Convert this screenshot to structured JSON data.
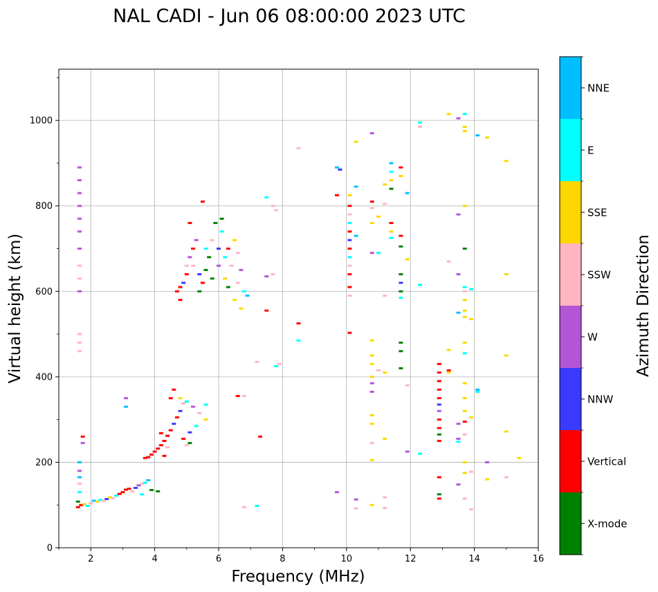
{
  "chart_data": {
    "type": "scatter",
    "title": "NAL CADI - Jun 06 08:00:00 2023 UTC",
    "xlabel": "Frequency (MHz)",
    "ylabel": "Virtual height (km)",
    "xlim": [
      1,
      16
    ],
    "ylim": [
      0,
      1120
    ],
    "xticks": [
      2,
      4,
      6,
      8,
      10,
      12,
      14,
      16
    ],
    "yticks": [
      0,
      200,
      400,
      600,
      800,
      1000
    ],
    "grid": true,
    "colorbar": {
      "label": "Azimuth Direction",
      "categories": [
        {
          "name": "X-mode",
          "color": "#008000"
        },
        {
          "name": "Vertical",
          "color": "#ff0000"
        },
        {
          "name": "NNW",
          "color": "#3a3aff"
        },
        {
          "name": "W",
          "color": "#b455d6"
        },
        {
          "name": "SSW",
          "color": "#ffb6c1"
        },
        {
          "name": "SSE",
          "color": "#ffd700"
        },
        {
          "name": "E",
          "color": "#00ffff"
        },
        {
          "name": "NNE",
          "color": "#00bfff"
        }
      ]
    },
    "points": [
      [
        1.6,
        95,
        "Vertical"
      ],
      [
        1.6,
        108,
        "X-mode"
      ],
      [
        1.7,
        100,
        "Vertical"
      ],
      [
        1.8,
        102,
        "SSE"
      ],
      [
        1.9,
        98,
        "E"
      ],
      [
        2.0,
        104,
        "SSW"
      ],
      [
        2.1,
        110,
        "NNE"
      ],
      [
        2.2,
        108,
        "SSE"
      ],
      [
        2.3,
        112,
        "E"
      ],
      [
        2.4,
        110,
        "SSW"
      ],
      [
        2.5,
        114,
        "NNW"
      ],
      [
        2.6,
        118,
        "SSE"
      ],
      [
        2.7,
        116,
        "SSW"
      ],
      [
        2.8,
        122,
        "E"
      ],
      [
        2.9,
        126,
        "Vertical"
      ],
      [
        3.0,
        130,
        "Vertical"
      ],
      [
        3.1,
        136,
        "Vertical"
      ],
      [
        3.2,
        138,
        "Vertical"
      ],
      [
        3.3,
        132,
        "SSW"
      ],
      [
        3.4,
        140,
        "NNW"
      ],
      [
        3.5,
        146,
        "W"
      ],
      [
        3.6,
        150,
        "SSW"
      ],
      [
        3.7,
        152,
        "E"
      ],
      [
        3.8,
        158,
        "NNE"
      ],
      [
        3.9,
        135,
        "X-mode"
      ],
      [
        3.6,
        125,
        "E"
      ],
      [
        4.1,
        132,
        "X-mode"
      ],
      [
        1.65,
        200,
        "NNE"
      ],
      [
        1.65,
        180,
        "W"
      ],
      [
        1.65,
        165,
        "NNE"
      ],
      [
        1.65,
        150,
        "SSW"
      ],
      [
        1.65,
        130,
        "E"
      ],
      [
        1.75,
        260,
        "Vertical"
      ],
      [
        1.75,
        245,
        "W"
      ],
      [
        3.1,
        330,
        "NNE"
      ],
      [
        3.1,
        350,
        "W"
      ],
      [
        3.7,
        210,
        "Vertical"
      ],
      [
        3.8,
        212,
        "Vertical"
      ],
      [
        3.9,
        218,
        "Vertical"
      ],
      [
        4.0,
        225,
        "Vertical"
      ],
      [
        4.1,
        232,
        "Vertical"
      ],
      [
        4.2,
        240,
        "Vertical"
      ],
      [
        4.3,
        250,
        "Vertical"
      ],
      [
        4.4,
        262,
        "Vertical"
      ],
      [
        4.5,
        275,
        "Vertical"
      ],
      [
        4.6,
        290,
        "NNW"
      ],
      [
        4.7,
        305,
        "Vertical"
      ],
      [
        4.8,
        320,
        "NNW"
      ],
      [
        4.9,
        338,
        "SSW"
      ],
      [
        5.0,
        342,
        "E"
      ],
      [
        5.2,
        330,
        "W"
      ],
      [
        5.4,
        315,
        "SSW"
      ],
      [
        5.6,
        335,
        "E"
      ],
      [
        5.6,
        300,
        "SSE"
      ],
      [
        4.5,
        350,
        "Vertical"
      ],
      [
        4.6,
        370,
        "Vertical"
      ],
      [
        4.4,
        235,
        "SSW"
      ],
      [
        4.3,
        215,
        "Vertical"
      ],
      [
        4.2,
        268,
        "Vertical"
      ],
      [
        4.9,
        255,
        "Vertical"
      ],
      [
        5.0,
        240,
        "SSW"
      ],
      [
        5.1,
        270,
        "NNW"
      ],
      [
        5.3,
        285,
        "E"
      ],
      [
        4.8,
        350,
        "SSE"
      ],
      [
        5.1,
        245,
        "X-mode"
      ],
      [
        1.65,
        890,
        "W"
      ],
      [
        1.65,
        860,
        "W"
      ],
      [
        1.65,
        830,
        "W"
      ],
      [
        1.65,
        800,
        "W"
      ],
      [
        1.65,
        770,
        "W"
      ],
      [
        1.65,
        740,
        "W"
      ],
      [
        1.65,
        700,
        "W"
      ],
      [
        1.65,
        660,
        "SSW"
      ],
      [
        1.65,
        630,
        "SSW"
      ],
      [
        1.65,
        600,
        "W"
      ],
      [
        1.65,
        500,
        "SSW"
      ],
      [
        1.65,
        480,
        "SSW"
      ],
      [
        1.65,
        460,
        "SSW"
      ],
      [
        4.7,
        600,
        "Vertical"
      ],
      [
        4.8,
        610,
        "Vertical"
      ],
      [
        4.9,
        620,
        "NNW"
      ],
      [
        5.0,
        640,
        "Vertical"
      ],
      [
        5.0,
        660,
        "SSW"
      ],
      [
        5.1,
        680,
        "W"
      ],
      [
        5.2,
        700,
        "Vertical"
      ],
      [
        5.3,
        720,
        "W"
      ],
      [
        5.4,
        640,
        "NNW"
      ],
      [
        5.4,
        600,
        "X-mode"
      ],
      [
        5.5,
        620,
        "Vertical"
      ],
      [
        5.6,
        650,
        "X-mode"
      ],
      [
        5.6,
        700,
        "E"
      ],
      [
        5.7,
        680,
        "X-mode"
      ],
      [
        5.8,
        630,
        "X-mode"
      ],
      [
        5.8,
        720,
        "SSW"
      ],
      [
        5.9,
        760,
        "X-mode"
      ],
      [
        6.0,
        700,
        "NNW"
      ],
      [
        6.0,
        660,
        "W"
      ],
      [
        6.1,
        740,
        "E"
      ],
      [
        6.2,
        680,
        "E"
      ],
      [
        6.2,
        630,
        "SSE"
      ],
      [
        6.3,
        610,
        "X-mode"
      ],
      [
        6.3,
        700,
        "Vertical"
      ],
      [
        6.4,
        660,
        "SSW"
      ],
      [
        6.5,
        580,
        "SSE"
      ],
      [
        6.6,
        620,
        "SSW"
      ],
      [
        6.7,
        650,
        "W"
      ],
      [
        6.8,
        600,
        "E"
      ],
      [
        6.9,
        590,
        "NNE"
      ],
      [
        5.1,
        760,
        "Vertical"
      ],
      [
        5.5,
        810,
        "Vertical"
      ],
      [
        6.5,
        720,
        "SSE"
      ],
      [
        6.6,
        690,
        "SSW"
      ],
      [
        6.7,
        560,
        "SSE"
      ],
      [
        4.8,
        580,
        "Vertical"
      ],
      [
        5.2,
        660,
        "SSW"
      ],
      [
        6.1,
        770,
        "X-mode"
      ],
      [
        6.6,
        355,
        "Vertical"
      ],
      [
        6.8,
        355,
        "SSW"
      ],
      [
        7.3,
        260,
        "Vertical"
      ],
      [
        7.2,
        435,
        "SSW"
      ],
      [
        7.5,
        555,
        "Vertical"
      ],
      [
        7.5,
        635,
        "W"
      ],
      [
        7.7,
        640,
        "SSW"
      ],
      [
        7.5,
        820,
        "E"
      ],
      [
        7.8,
        425,
        "E"
      ],
      [
        7.9,
        430,
        "SSW"
      ],
      [
        7.7,
        800,
        "SSW"
      ],
      [
        7.8,
        790,
        "SSW"
      ],
      [
        8.5,
        935,
        "SSW"
      ],
      [
        8.5,
        525,
        "Vertical"
      ],
      [
        8.5,
        485,
        "E"
      ],
      [
        6.8,
        95,
        "SSW"
      ],
      [
        7.2,
        98,
        "E"
      ],
      [
        9.7,
        890,
        "NNE"
      ],
      [
        9.8,
        885,
        "NNW"
      ],
      [
        9.7,
        825,
        "Vertical"
      ],
      [
        9.7,
        130,
        "W"
      ],
      [
        10.1,
        800,
        "Vertical"
      ],
      [
        10.1,
        780,
        "SSW"
      ],
      [
        10.1,
        760,
        "E"
      ],
      [
        10.1,
        740,
        "Vertical"
      ],
      [
        10.1,
        720,
        "NNW"
      ],
      [
        10.1,
        700,
        "Vertical"
      ],
      [
        10.1,
        680,
        "E"
      ],
      [
        10.1,
        660,
        "SSW"
      ],
      [
        10.1,
        640,
        "Vertical"
      ],
      [
        10.1,
        610,
        "Vertical"
      ],
      [
        10.1,
        590,
        "SSW"
      ],
      [
        10.1,
        503,
        "Vertical"
      ],
      [
        10.1,
        825,
        "SSE"
      ],
      [
        10.3,
        845,
        "NNE"
      ],
      [
        10.3,
        730,
        "NNE"
      ],
      [
        10.3,
        950,
        "SSE"
      ],
      [
        10.3,
        113,
        "W"
      ],
      [
        10.3,
        92,
        "SSW"
      ],
      [
        10.8,
        970,
        "W"
      ],
      [
        10.8,
        810,
        "Vertical"
      ],
      [
        10.8,
        795,
        "SSW"
      ],
      [
        10.8,
        760,
        "SSE"
      ],
      [
        10.8,
        690,
        "W"
      ],
      [
        10.8,
        485,
        "SSE"
      ],
      [
        10.8,
        450,
        "SSE"
      ],
      [
        10.8,
        430,
        "SSE"
      ],
      [
        10.8,
        400,
        "SSE"
      ],
      [
        10.8,
        385,
        "W"
      ],
      [
        10.8,
        365,
        "W"
      ],
      [
        10.8,
        310,
        "SSE"
      ],
      [
        10.8,
        290,
        "SSE"
      ],
      [
        10.8,
        245,
        "SSW"
      ],
      [
        10.8,
        205,
        "SSE"
      ],
      [
        10.8,
        100,
        "SSE"
      ],
      [
        11.0,
        690,
        "E"
      ],
      [
        11.0,
        775,
        "SSE"
      ],
      [
        11.0,
        415,
        "SSW"
      ],
      [
        11.2,
        850,
        "SSE"
      ],
      [
        11.2,
        410,
        "SSE"
      ],
      [
        11.2,
        255,
        "SSE"
      ],
      [
        11.2,
        118,
        "SSW"
      ],
      [
        11.2,
        93,
        "SSW"
      ],
      [
        11.2,
        590,
        "SSW"
      ],
      [
        11.2,
        805,
        "SSW"
      ],
      [
        11.4,
        900,
        "NNE"
      ],
      [
        11.4,
        880,
        "E"
      ],
      [
        11.4,
        860,
        "SSE"
      ],
      [
        11.4,
        840,
        "X-mode"
      ],
      [
        11.4,
        760,
        "Vertical"
      ],
      [
        11.4,
        740,
        "SSE"
      ],
      [
        11.4,
        725,
        "E"
      ],
      [
        11.7,
        890,
        "Vertical"
      ],
      [
        11.7,
        870,
        "SSE"
      ],
      [
        11.7,
        730,
        "Vertical"
      ],
      [
        11.7,
        705,
        "X-mode"
      ],
      [
        11.7,
        640,
        "X-mode"
      ],
      [
        11.7,
        620,
        "NNW"
      ],
      [
        11.7,
        600,
        "X-mode"
      ],
      [
        11.7,
        585,
        "E"
      ],
      [
        11.7,
        480,
        "X-mode"
      ],
      [
        11.7,
        460,
        "X-mode"
      ],
      [
        11.7,
        420,
        "X-mode"
      ],
      [
        11.9,
        830,
        "NNE"
      ],
      [
        11.9,
        675,
        "SSE"
      ],
      [
        11.9,
        380,
        "SSW"
      ],
      [
        11.9,
        225,
        "W"
      ],
      [
        12.3,
        995,
        "E"
      ],
      [
        12.3,
        985,
        "SSW"
      ],
      [
        12.3,
        615,
        "E"
      ],
      [
        12.3,
        220,
        "E"
      ],
      [
        12.9,
        430,
        "Vertical"
      ],
      [
        12.9,
        410,
        "Vertical"
      ],
      [
        12.9,
        390,
        "Vertical"
      ],
      [
        12.9,
        370,
        "Vertical"
      ],
      [
        12.9,
        350,
        "Vertical"
      ],
      [
        12.9,
        335,
        "NNW"
      ],
      [
        12.9,
        320,
        "W"
      ],
      [
        12.9,
        300,
        "Vertical"
      ],
      [
        12.9,
        280,
        "Vertical"
      ],
      [
        12.9,
        265,
        "X-mode"
      ],
      [
        12.9,
        250,
        "Vertical"
      ],
      [
        12.9,
        165,
        "Vertical"
      ],
      [
        12.9,
        125,
        "X-mode"
      ],
      [
        12.9,
        115,
        "Vertical"
      ],
      [
        13.2,
        415,
        "Vertical"
      ],
      [
        13.2,
        410,
        "SSE"
      ],
      [
        13.2,
        463,
        "SSE"
      ],
      [
        13.2,
        670,
        "SSW"
      ],
      [
        13.2,
        1015,
        "SSE"
      ],
      [
        13.5,
        1005,
        "W"
      ],
      [
        13.5,
        780,
        "W"
      ],
      [
        13.5,
        640,
        "W"
      ],
      [
        13.5,
        550,
        "NNE"
      ],
      [
        13.5,
        290,
        "W"
      ],
      [
        13.5,
        255,
        "W"
      ],
      [
        13.5,
        248,
        "E"
      ],
      [
        13.5,
        148,
        "W"
      ],
      [
        13.7,
        1015,
        "E"
      ],
      [
        13.7,
        985,
        "SSE"
      ],
      [
        13.7,
        975,
        "SSE"
      ],
      [
        13.7,
        800,
        "SSE"
      ],
      [
        13.7,
        700,
        "X-mode"
      ],
      [
        13.7,
        610,
        "E"
      ],
      [
        13.7,
        600,
        "SSW"
      ],
      [
        13.7,
        580,
        "SSE"
      ],
      [
        13.7,
        555,
        "SSE"
      ],
      [
        13.7,
        540,
        "SSE"
      ],
      [
        13.7,
        480,
        "SSE"
      ],
      [
        13.7,
        455,
        "E"
      ],
      [
        13.7,
        385,
        "SSE"
      ],
      [
        13.7,
        350,
        "SSE"
      ],
      [
        13.7,
        320,
        "SSE"
      ],
      [
        13.7,
        295,
        "Vertical"
      ],
      [
        13.7,
        265,
        "SSW"
      ],
      [
        13.7,
        200,
        "SSE"
      ],
      [
        13.7,
        175,
        "SSE"
      ],
      [
        13.7,
        115,
        "SSW"
      ],
      [
        13.9,
        605,
        "E"
      ],
      [
        13.9,
        535,
        "SSE"
      ],
      [
        13.9,
        305,
        "SSE"
      ],
      [
        13.9,
        178,
        "SSW"
      ],
      [
        13.9,
        90,
        "SSW"
      ],
      [
        14.1,
        965,
        "NNE"
      ],
      [
        14.1,
        370,
        "NNE"
      ],
      [
        14.1,
        365,
        "E"
      ],
      [
        14.4,
        960,
        "SSE"
      ],
      [
        14.4,
        200,
        "W"
      ],
      [
        14.4,
        160,
        "SSE"
      ],
      [
        15.0,
        905,
        "SSE"
      ],
      [
        15.0,
        640,
        "SSE"
      ],
      [
        15.0,
        450,
        "SSE"
      ],
      [
        15.0,
        272,
        "SSE"
      ],
      [
        15.0,
        165,
        "SSW"
      ],
      [
        15.4,
        210,
        "SSE"
      ]
    ]
  }
}
